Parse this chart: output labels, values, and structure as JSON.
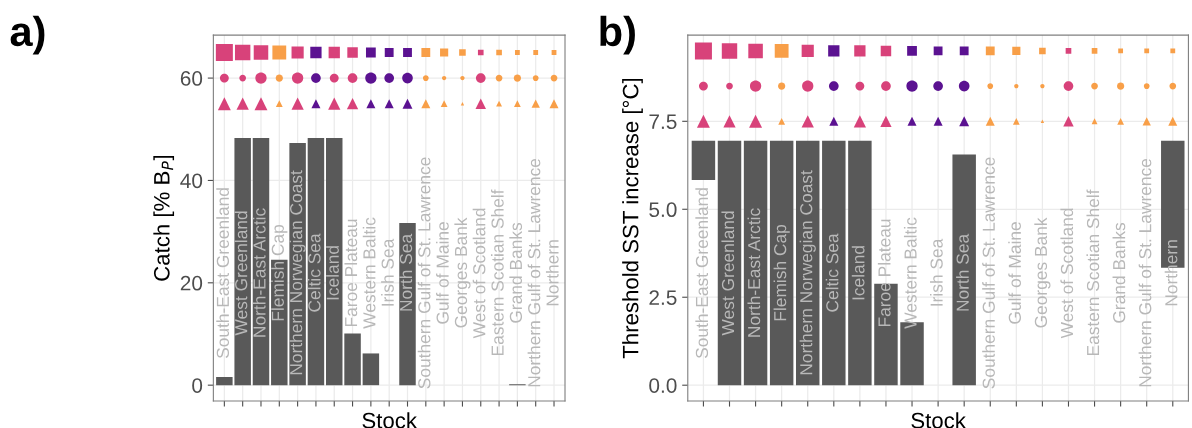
{
  "chart_data": [
    {
      "type": "bar",
      "title": "a)",
      "xlabel": "Stock",
      "ylabel": "Catch [% B$_{P}$]",
      "categories": [
        "South-East Greenland",
        "West Greenland",
        "North-East Arctic",
        "Flemish Cap",
        "Northern Norwegian Coast",
        "Celtic Sea",
        "Iceland",
        "Faroe Plateau",
        "Western Baltic",
        "Irish Sea",
        "North Sea",
        "Southern Gulf of St. Lawrence",
        "Gulf of Maine",
        "Georges Bank",
        "West of Scotland",
        "Eastern Scotian Shelf",
        "Grand Banks",
        "Northern Gulf of St. Lawrence",
        "Northern"
      ],
      "series": [
        {
          "type": "bar",
          "color": "#595959",
          "values": [
            1.6,
            48.3,
            48.3,
            24.5,
            47.3,
            48.3,
            48.3,
            10.1,
            6.2,
            null,
            31.7,
            null,
            null,
            null,
            null,
            null,
            0.2,
            null,
            null
          ]
        },
        {
          "type": "bubble",
          "marker": "square",
          "values": [
            65,
            65,
            65,
            65,
            65,
            65,
            65,
            65,
            65,
            65,
            65,
            65,
            65,
            65,
            65,
            65,
            65,
            65,
            65
          ],
          "sizes": [
            1,
            0.82,
            0.73,
            0.66,
            0.51,
            0.44,
            0.44,
            0.38,
            0.33,
            0.27,
            0.27,
            0.27,
            0.23,
            0.15,
            0.11,
            0.11,
            0.08,
            0.08,
            0.08
          ],
          "colors": [
            "#d8427a",
            "#d8427a",
            "#d8427a",
            "#f89f48",
            "#d8427a",
            "#5b1291",
            "#d8427a",
            "#d8427a",
            "#5b1291",
            "#5b1291",
            "#5b1291",
            "#f89f48",
            "#f89f48",
            "#f89f48",
            "#d8427a",
            "#f89f48",
            "#f89f48",
            "#f89f48",
            "#f89f48"
          ]
        },
        {
          "type": "bubble",
          "marker": "circle",
          "values": [
            60,
            60,
            60,
            60,
            60,
            60,
            60,
            60,
            60,
            60,
            60,
            60,
            60,
            60,
            60,
            60,
            60,
            60,
            60
          ],
          "sizes": [
            0.21,
            0.12,
            0.34,
            0.14,
            0.34,
            0.25,
            0.21,
            0.25,
            0.34,
            0.25,
            0.3,
            0.09,
            0.05,
            0.05,
            0.25,
            0.12,
            0.14,
            0.09,
            0.12
          ],
          "colors": [
            "#d8427a",
            "#d8427a",
            "#d8427a",
            "#f89f48",
            "#d8427a",
            "#5b1291",
            "#d8427a",
            "#d8427a",
            "#5b1291",
            "#5b1291",
            "#5b1291",
            "#f89f48",
            "#f89f48",
            "#f89f48",
            "#d8427a",
            "#f89f48",
            "#f89f48",
            "#f89f48",
            "#f89f48"
          ]
        },
        {
          "type": "bubble",
          "marker": "triangle",
          "values": [
            55,
            55,
            55,
            55,
            55,
            55,
            55,
            55,
            55,
            55,
            55,
            55,
            55,
            55,
            55,
            55,
            55,
            55,
            55
          ],
          "sizes": [
            0.29,
            0.26,
            0.29,
            0.08,
            0.26,
            0.14,
            0.26,
            0.22,
            0.14,
            0.14,
            0.17,
            0.14,
            0.08,
            0.02,
            0.19,
            0.06,
            0.08,
            0.12,
            0.14
          ],
          "colors": [
            "#d8427a",
            "#d8427a",
            "#d8427a",
            "#f89f48",
            "#d8427a",
            "#5b1291",
            "#d8427a",
            "#d8427a",
            "#5b1291",
            "#5b1291",
            "#5b1291",
            "#f89f48",
            "#f89f48",
            "#f89f48",
            "#d8427a",
            "#f89f48",
            "#f89f48",
            "#f89f48",
            "#f89f48"
          ]
        }
      ],
      "ylim": [
        -3.1,
        68.4
      ],
      "yticks": [
        0,
        20,
        40,
        60
      ],
      "grid": true,
      "tick_labels": "y"
    },
    {
      "type": "bar",
      "title": "b)",
      "xlabel": "Stock",
      "ylabel": "Threshold SST increase [°C]",
      "categories": [
        "South-East Greenland",
        "West Greenland",
        "North-East Arctic",
        "Flemish Cap",
        "Northern Norwegian Coast",
        "Celtic Sea",
        "Iceland",
        "Faroe Plateau",
        "Western Baltic",
        "Irish Sea",
        "North Sea",
        "Southern Gulf of St. Lawrence",
        "Gulf of Maine",
        "Georges Bank",
        "West of Scotland",
        "Eastern Scotian Shelf",
        "Grand Banks",
        "Northern Gulf of St. Lawrence",
        "Northern"
      ],
      "series": [
        {
          "type": "bar",
          "color": "#595959",
          "base": [
            5.83,
            0,
            0,
            0,
            0,
            0,
            0,
            0,
            0,
            null,
            0,
            null,
            null,
            null,
            null,
            null,
            null,
            null,
            3.34
          ],
          "values": [
            1.12,
            6.95,
            6.95,
            6.95,
            6.95,
            6.95,
            6.95,
            2.88,
            1.79,
            null,
            6.56,
            null,
            null,
            null,
            null,
            null,
            null,
            null,
            3.61
          ]
        },
        {
          "type": "bubble",
          "marker": "square",
          "values": [
            9.5,
            9.5,
            9.5,
            9.5,
            9.5,
            9.5,
            9.5,
            9.5,
            9.5,
            9.5,
            9.5,
            9.5,
            9.5,
            9.5,
            9.5,
            9.5,
            9.5,
            9.5,
            9.5
          ],
          "sizes": [
            1,
            0.82,
            0.73,
            0.66,
            0.51,
            0.44,
            0.44,
            0.38,
            0.33,
            0.27,
            0.27,
            0.27,
            0.23,
            0.15,
            0.11,
            0.11,
            0.08,
            0.08,
            0.08
          ],
          "colors": [
            "#d8427a",
            "#d8427a",
            "#d8427a",
            "#f89f48",
            "#d8427a",
            "#5b1291",
            "#d8427a",
            "#d8427a",
            "#5b1291",
            "#5b1291",
            "#5b1291",
            "#f89f48",
            "#f89f48",
            "#f89f48",
            "#d8427a",
            "#f89f48",
            "#f89f48",
            "#f89f48",
            "#f89f48"
          ]
        },
        {
          "type": "bubble",
          "marker": "circle",
          "values": [
            8.5,
            8.5,
            8.5,
            8.5,
            8.5,
            8.5,
            8.5,
            8.5,
            8.5,
            8.5,
            8.5,
            8.5,
            8.5,
            8.5,
            8.5,
            8.5,
            8.5,
            8.5,
            8.5
          ],
          "sizes": [
            0.21,
            0.12,
            0.34,
            0.14,
            0.34,
            0.25,
            0.21,
            0.25,
            0.34,
            0.25,
            0.3,
            0.09,
            0.05,
            0.05,
            0.25,
            0.12,
            0.14,
            0.09,
            0.12
          ],
          "colors": [
            "#d8427a",
            "#d8427a",
            "#d8427a",
            "#f89f48",
            "#d8427a",
            "#5b1291",
            "#d8427a",
            "#d8427a",
            "#5b1291",
            "#5b1291",
            "#5b1291",
            "#f89f48",
            "#f89f48",
            "#f89f48",
            "#d8427a",
            "#f89f48",
            "#f89f48",
            "#f89f48",
            "#f89f48"
          ]
        },
        {
          "type": "bubble",
          "marker": "triangle",
          "values": [
            7.5,
            7.5,
            7.5,
            7.5,
            7.5,
            7.5,
            7.5,
            7.5,
            7.5,
            7.5,
            7.5,
            7.5,
            7.5,
            7.5,
            7.5,
            7.5,
            7.5,
            7.5,
            7.5
          ],
          "sizes": [
            0.29,
            0.26,
            0.29,
            0.08,
            0.26,
            0.14,
            0.26,
            0.22,
            0.14,
            0.14,
            0.17,
            0.14,
            0.08,
            0.02,
            0.19,
            0.06,
            0.08,
            0.12,
            0.14
          ],
          "colors": [
            "#d8427a",
            "#d8427a",
            "#d8427a",
            "#f89f48",
            "#d8427a",
            "#5b1291",
            "#d8427a",
            "#d8427a",
            "#5b1291",
            "#5b1291",
            "#5b1291",
            "#f89f48",
            "#f89f48",
            "#f89f48",
            "#d8427a",
            "#f89f48",
            "#f89f48",
            "#f89f48",
            "#f89f48"
          ]
        }
      ],
      "ylim": [
        -0.45,
        9.95
      ],
      "yticks": [
        {
          "value": 0,
          "label": "0.0"
        },
        2.5,
        {
          "value": 5,
          "label": "5.0"
        },
        7.5
      ],
      "grid": true,
      "tick_labels": "y"
    }
  ]
}
